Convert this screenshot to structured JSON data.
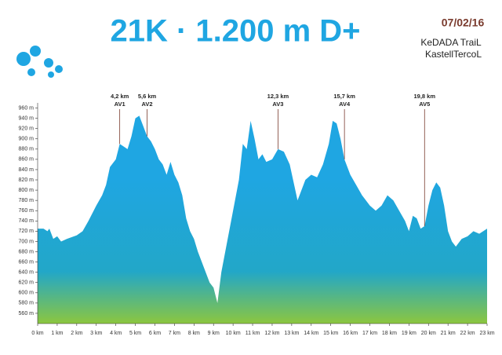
{
  "chart_data": {
    "type": "area",
    "title": "21K · 1.200 m D+",
    "logo": {
      "date": "07/02/16",
      "line1": "KeDADA TraiL",
      "line2": "KastellTercoL"
    },
    "x": [
      0,
      0.3,
      0.5,
      0.6,
      0.8,
      1.0,
      1.2,
      1.5,
      2.0,
      2.3,
      2.6,
      3.0,
      3.3,
      3.5,
      3.7,
      4.0,
      4.2,
      4.4,
      4.6,
      4.8,
      5.0,
      5.2,
      5.4,
      5.6,
      5.8,
      6.0,
      6.2,
      6.4,
      6.6,
      6.8,
      7.0,
      7.2,
      7.4,
      7.6,
      7.8,
      8.0,
      8.2,
      8.5,
      8.8,
      9.0,
      9.2,
      9.4,
      9.6,
      9.8,
      10.0,
      10.3,
      10.5,
      10.7,
      10.9,
      11.1,
      11.3,
      11.5,
      11.7,
      12.0,
      12.3,
      12.6,
      12.9,
      13.1,
      13.3,
      13.5,
      13.7,
      14.0,
      14.3,
      14.6,
      14.9,
      15.1,
      15.3,
      15.5,
      15.7,
      16.0,
      16.3,
      16.6,
      17.0,
      17.3,
      17.6,
      17.9,
      18.2,
      18.5,
      18.8,
      19.0,
      19.2,
      19.4,
      19.6,
      19.8,
      20.0,
      20.2,
      20.4,
      20.6,
      20.8,
      21.0,
      21.2,
      21.4,
      21.7,
      22.0,
      22.3,
      22.6,
      23.0
    ],
    "values": [
      725,
      725,
      720,
      725,
      705,
      710,
      700,
      705,
      712,
      720,
      740,
      770,
      790,
      810,
      845,
      860,
      890,
      885,
      880,
      905,
      940,
      945,
      925,
      905,
      895,
      880,
      860,
      850,
      830,
      855,
      830,
      815,
      790,
      745,
      720,
      705,
      680,
      650,
      620,
      610,
      580,
      640,
      680,
      720,
      760,
      820,
      890,
      880,
      935,
      900,
      860,
      870,
      855,
      860,
      880,
      875,
      850,
      815,
      780,
      800,
      820,
      830,
      825,
      850,
      890,
      935,
      930,
      900,
      860,
      830,
      810,
      790,
      770,
      760,
      770,
      790,
      780,
      760,
      740,
      720,
      750,
      745,
      725,
      730,
      770,
      800,
      815,
      805,
      770,
      720,
      700,
      690,
      705,
      710,
      720,
      715,
      725
    ],
    "colors": [
      "#1fa6e2",
      "#22a7c8",
      "#8cc63f"
    ],
    "xlim": [
      0,
      23
    ],
    "ylim": [
      540,
      970
    ],
    "xticks": [
      {
        "value": 0,
        "label": "0 km"
      },
      {
        "value": 1,
        "label": "1 km"
      },
      {
        "value": 2,
        "label": "2 km"
      },
      {
        "value": 3,
        "label": "3 km"
      },
      {
        "value": 4,
        "label": "4 km"
      },
      {
        "value": 5,
        "label": "5 km"
      },
      {
        "value": 6,
        "label": "6 km"
      },
      {
        "value": 7,
        "label": "7 km"
      },
      {
        "value": 8,
        "label": "8 km"
      },
      {
        "value": 9,
        "label": "9 km"
      },
      {
        "value": 10,
        "label": "10 km"
      },
      {
        "value": 11,
        "label": "11 km"
      },
      {
        "value": 12,
        "label": "12 km"
      },
      {
        "value": 13,
        "label": "13 km"
      },
      {
        "value": 14,
        "label": "14 km"
      },
      {
        "value": 15,
        "label": "15 km"
      },
      {
        "value": 16,
        "label": "16 km"
      },
      {
        "value": 17,
        "label": "17 km"
      },
      {
        "value": 18,
        "label": "18 km"
      },
      {
        "value": 19,
        "label": "19 km"
      },
      {
        "value": 20,
        "label": "20 km"
      },
      {
        "value": 21,
        "label": "21 km"
      },
      {
        "value": 22,
        "label": "22 km"
      },
      {
        "value": 23,
        "label": "23 km"
      }
    ],
    "yticks": [
      {
        "value": 560,
        "label": "560 m"
      },
      {
        "value": 580,
        "label": "580 m"
      },
      {
        "value": 600,
        "label": "600 m"
      },
      {
        "value": 620,
        "label": "620 m"
      },
      {
        "value": 640,
        "label": "640 m"
      },
      {
        "value": 660,
        "label": "660 m"
      },
      {
        "value": 680,
        "label": "680 m"
      },
      {
        "value": 700,
        "label": "700 m"
      },
      {
        "value": 720,
        "label": "720 m"
      },
      {
        "value": 740,
        "label": "740 m"
      },
      {
        "value": 760,
        "label": "760 m"
      },
      {
        "value": 780,
        "label": "780 m"
      },
      {
        "value": 800,
        "label": "800 m"
      },
      {
        "value": 820,
        "label": "820 m"
      },
      {
        "value": 840,
        "label": "840 m"
      },
      {
        "value": 860,
        "label": "860 m"
      },
      {
        "value": 880,
        "label": "880 m"
      },
      {
        "value": 900,
        "label": "900 m"
      },
      {
        "value": 920,
        "label": "920 m"
      },
      {
        "value": 940,
        "label": "940 m"
      },
      {
        "value": 960,
        "label": "960 m"
      }
    ],
    "annotations": [
      {
        "x": 4.2,
        "label": "4,2 km",
        "name": "AV1"
      },
      {
        "x": 5.6,
        "label": "5,6 km",
        "name": "AV2"
      },
      {
        "x": 12.3,
        "label": "12,3 km",
        "name": "AV3"
      },
      {
        "x": 15.7,
        "label": "15,7 km",
        "name": "AV4"
      },
      {
        "x": 19.8,
        "label": "19,8 km",
        "name": "AV5"
      }
    ],
    "annotation_color": "#7a3b2e"
  }
}
